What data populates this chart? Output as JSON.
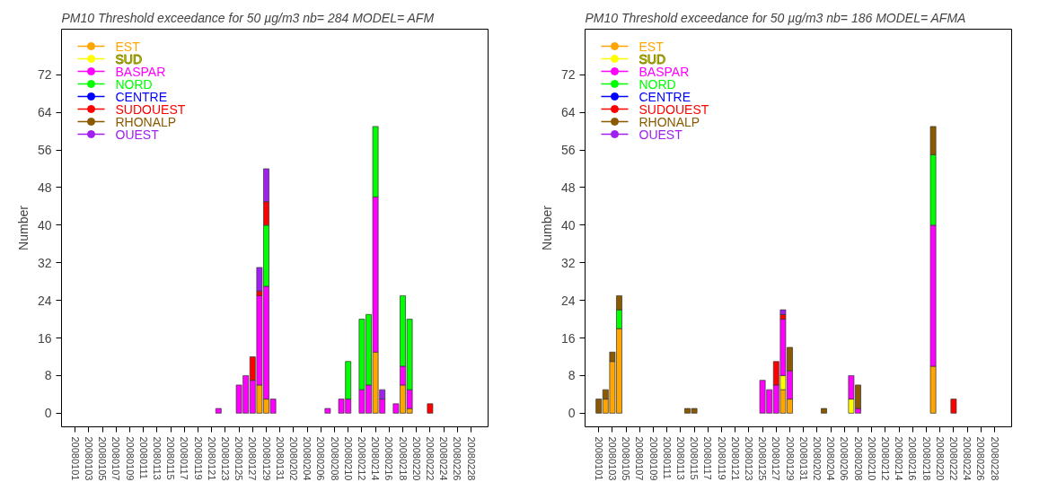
{
  "chart_data": [
    {
      "type": "bar",
      "stacked": true,
      "title": "PM10  Threshold exceedance for  50 µg/m3   nb= 284 MODEL= AFM",
      "ylabel": "Number",
      "categories": [
        "20080101",
        null,
        "20080103",
        null,
        "20080105",
        null,
        "20080107",
        null,
        "20080109",
        null,
        "20080111",
        null,
        "20080113",
        null,
        "20080115",
        null,
        "20080117",
        null,
        "20080119",
        null,
        "20080121",
        null,
        "20080123",
        null,
        "20080125",
        null,
        "20080127",
        null,
        "20080129",
        null,
        "20080131",
        null,
        "20080202",
        null,
        "20080204",
        null,
        "20080206",
        null,
        "20080208",
        null,
        "20080210",
        null,
        "20080212",
        null,
        "20080214",
        null,
        "20080216",
        null,
        "20080218",
        null,
        "20080220",
        null,
        "20080222",
        null,
        "20080224",
        null,
        "20080226",
        null,
        "20080228",
        null
      ],
      "series": [
        {
          "name": "EST",
          "color": "#ffa500",
          "values": [
            0,
            0,
            0,
            0,
            0,
            0,
            0,
            0,
            0,
            0,
            0,
            0,
            0,
            0,
            0,
            0,
            0,
            0,
            0,
            0,
            0,
            0,
            0,
            0,
            0,
            0,
            0,
            6,
            3,
            0,
            0,
            0,
            0,
            0,
            0,
            0,
            0,
            0,
            0,
            0,
            0,
            0,
            0,
            0,
            13,
            0,
            0,
            0,
            6,
            1,
            0,
            0,
            0,
            0,
            0,
            0,
            0,
            0,
            0,
            0
          ]
        },
        {
          "name": "SUD",
          "color": "#ffff00",
          "values": [
            0,
            0,
            0,
            0,
            0,
            0,
            0,
            0,
            0,
            0,
            0,
            0,
            0,
            0,
            0,
            0,
            0,
            0,
            0,
            0,
            0,
            0,
            0,
            0,
            0,
            0,
            0,
            0,
            0,
            0,
            0,
            0,
            0,
            0,
            0,
            0,
            0,
            0,
            0,
            0,
            0,
            0,
            0,
            0,
            0,
            0,
            0,
            0,
            0,
            0,
            0,
            0,
            0,
            0,
            0,
            0,
            0,
            0,
            0,
            0
          ]
        },
        {
          "name": "BASPAR",
          "color": "#ff00ff",
          "values": [
            0,
            0,
            0,
            0,
            0,
            0,
            0,
            0,
            0,
            0,
            0,
            0,
            0,
            0,
            0,
            0,
            0,
            0,
            0,
            0,
            0,
            1,
            0,
            0,
            6,
            8,
            7,
            19,
            24,
            3,
            0,
            0,
            0,
            0,
            0,
            0,
            0,
            1,
            0,
            3,
            3,
            0,
            5,
            6,
            33,
            3,
            0,
            2,
            4,
            4,
            0,
            0,
            0,
            0,
            0,
            0,
            0,
            0,
            0,
            0
          ]
        },
        {
          "name": "NORD",
          "color": "#00ff00",
          "values": [
            0,
            0,
            0,
            0,
            0,
            0,
            0,
            0,
            0,
            0,
            0,
            0,
            0,
            0,
            0,
            0,
            0,
            0,
            0,
            0,
            0,
            0,
            0,
            0,
            0,
            0,
            0,
            0,
            13,
            0,
            0,
            0,
            0,
            0,
            0,
            0,
            0,
            0,
            0,
            0,
            8,
            0,
            15,
            15,
            15,
            0,
            0,
            0,
            15,
            15,
            0,
            0,
            0,
            0,
            0,
            0,
            0,
            0,
            0,
            0
          ]
        },
        {
          "name": "CENTRE",
          "color": "#0000ff",
          "values": [
            0,
            0,
            0,
            0,
            0,
            0,
            0,
            0,
            0,
            0,
            0,
            0,
            0,
            0,
            0,
            0,
            0,
            0,
            0,
            0,
            0,
            0,
            0,
            0,
            0,
            0,
            0,
            0,
            0,
            0,
            0,
            0,
            0,
            0,
            0,
            0,
            0,
            0,
            0,
            0,
            0,
            0,
            0,
            0,
            0,
            0,
            0,
            0,
            0,
            0,
            0,
            0,
            0,
            0,
            0,
            0,
            0,
            0,
            0,
            0
          ]
        },
        {
          "name": "SUDOUEST",
          "color": "#ff0000",
          "values": [
            0,
            0,
            0,
            0,
            0,
            0,
            0,
            0,
            0,
            0,
            0,
            0,
            0,
            0,
            0,
            0,
            0,
            0,
            0,
            0,
            0,
            0,
            0,
            0,
            0,
            0,
            5,
            1,
            5,
            0,
            0,
            0,
            0,
            0,
            0,
            0,
            0,
            0,
            0,
            0,
            0,
            0,
            0,
            0,
            0,
            0,
            0,
            0,
            0,
            0,
            0,
            0,
            2,
            0,
            0,
            0,
            0,
            0,
            0,
            0
          ]
        },
        {
          "name": "RHONALP",
          "color": "#8b5a00",
          "values": [
            0,
            0,
            0,
            0,
            0,
            0,
            0,
            0,
            0,
            0,
            0,
            0,
            0,
            0,
            0,
            0,
            0,
            0,
            0,
            0,
            0,
            0,
            0,
            0,
            0,
            0,
            0,
            0,
            0,
            0,
            0,
            0,
            0,
            0,
            0,
            0,
            0,
            0,
            0,
            0,
            0,
            0,
            0,
            0,
            0,
            0,
            0,
            0,
            0,
            0,
            0,
            0,
            0,
            0,
            0,
            0,
            0,
            0,
            0,
            0
          ]
        },
        {
          "name": "OUEST",
          "color": "#a020f0",
          "values": [
            0,
            0,
            0,
            0,
            0,
            0,
            0,
            0,
            0,
            0,
            0,
            0,
            0,
            0,
            0,
            0,
            0,
            0,
            0,
            0,
            0,
            0,
            0,
            0,
            0,
            0,
            0,
            5,
            7,
            0,
            0,
            0,
            0,
            0,
            0,
            0,
            0,
            0,
            0,
            0,
            0,
            0,
            0,
            0,
            0,
            2,
            0,
            0,
            0,
            0,
            0,
            0,
            0,
            0,
            0,
            0,
            0,
            0,
            0,
            0
          ]
        }
      ],
      "ylim": [
        -2.9,
        81.7
      ],
      "yticks": [
        0,
        8,
        16,
        24,
        32,
        40,
        48,
        56,
        64,
        72
      ],
      "grid": false,
      "legend": "top left"
    },
    {
      "type": "bar",
      "stacked": true,
      "title": "PM10  Threshold exceedance for  50 µg/m3   nb= 186 MODEL= AFMA",
      "ylabel": "Number",
      "categories": [
        "20080101",
        null,
        "20080103",
        null,
        "20080105",
        null,
        "20080107",
        null,
        "20080109",
        null,
        "20080111",
        null,
        "20080113",
        null,
        "20080115",
        null,
        "20080117",
        null,
        "20080119",
        null,
        "20080121",
        null,
        "20080123",
        null,
        "20080125",
        null,
        "20080127",
        null,
        "20080129",
        null,
        "20080131",
        null,
        "20080202",
        null,
        "20080204",
        null,
        "20080206",
        null,
        "20080208",
        null,
        "20080210",
        null,
        "20080212",
        null,
        "20080214",
        null,
        "20080216",
        null,
        "20080218",
        null,
        "20080220",
        null,
        "20080222",
        null,
        "20080224",
        null,
        "20080226",
        null,
        "20080228",
        null
      ],
      "series": [
        {
          "name": "EST",
          "color": "#ffa500",
          "values": [
            0,
            3,
            11,
            18,
            0,
            0,
            0,
            0,
            0,
            0,
            0,
            0,
            0,
            0,
            0,
            0,
            0,
            0,
            0,
            0,
            0,
            0,
            0,
            0,
            0,
            0,
            0,
            5,
            3,
            0,
            0,
            0,
            0,
            0,
            0,
            0,
            0,
            0,
            0,
            0,
            0,
            0,
            0,
            0,
            0,
            0,
            0,
            0,
            0,
            10,
            0,
            0,
            0,
            0,
            0,
            0,
            0,
            0,
            0,
            0
          ]
        },
        {
          "name": "SUD",
          "color": "#ffff00",
          "values": [
            0,
            0,
            0,
            0,
            0,
            0,
            0,
            0,
            0,
            0,
            0,
            0,
            0,
            0,
            0,
            0,
            0,
            0,
            0,
            0,
            0,
            0,
            0,
            0,
            0,
            0,
            0,
            3,
            0,
            0,
            0,
            0,
            0,
            0,
            0,
            0,
            0,
            3,
            0,
            0,
            0,
            0,
            0,
            0,
            0,
            0,
            0,
            0,
            0,
            0,
            0,
            0,
            0,
            0,
            0,
            0,
            0,
            0,
            0,
            0
          ]
        },
        {
          "name": "BASPAR",
          "color": "#ff00ff",
          "values": [
            0,
            0,
            0,
            0,
            0,
            0,
            0,
            0,
            0,
            0,
            0,
            0,
            0,
            0,
            0,
            0,
            0,
            0,
            0,
            0,
            0,
            0,
            0,
            0,
            7,
            5,
            6,
            12,
            6,
            0,
            0,
            0,
            0,
            0,
            0,
            0,
            0,
            5,
            1,
            0,
            0,
            0,
            0,
            0,
            0,
            0,
            0,
            0,
            0,
            30,
            0,
            0,
            0,
            0,
            0,
            0,
            0,
            0,
            0,
            0
          ]
        },
        {
          "name": "NORD",
          "color": "#00ff00",
          "values": [
            0,
            0,
            0,
            4,
            0,
            0,
            0,
            0,
            0,
            0,
            0,
            0,
            0,
            0,
            0,
            0,
            0,
            0,
            0,
            0,
            0,
            0,
            0,
            0,
            0,
            0,
            0,
            0,
            0,
            0,
            0,
            0,
            0,
            0,
            0,
            0,
            0,
            0,
            0,
            0,
            0,
            0,
            0,
            0,
            0,
            0,
            0,
            0,
            0,
            15,
            0,
            0,
            0,
            0,
            0,
            0,
            0,
            0,
            0,
            0
          ]
        },
        {
          "name": "CENTRE",
          "color": "#0000ff",
          "values": [
            0,
            0,
            0,
            0,
            0,
            0,
            0,
            0,
            0,
            0,
            0,
            0,
            0,
            0,
            0,
            0,
            0,
            0,
            0,
            0,
            0,
            0,
            0,
            0,
            0,
            0,
            0,
            0,
            0,
            0,
            0,
            0,
            0,
            0,
            0,
            0,
            0,
            0,
            0,
            0,
            0,
            0,
            0,
            0,
            0,
            0,
            0,
            0,
            0,
            0,
            0,
            0,
            0,
            0,
            0,
            0,
            0,
            0,
            0,
            0
          ]
        },
        {
          "name": "SUDOUEST",
          "color": "#ff0000",
          "values": [
            0,
            0,
            0,
            0,
            0,
            0,
            0,
            0,
            0,
            0,
            0,
            0,
            0,
            0,
            0,
            0,
            0,
            0,
            0,
            0,
            0,
            0,
            0,
            0,
            0,
            0,
            5,
            1,
            0,
            0,
            0,
            0,
            0,
            0,
            0,
            0,
            0,
            0,
            0,
            0,
            0,
            0,
            0,
            0,
            0,
            0,
            0,
            0,
            0,
            0,
            0,
            0,
            3,
            0,
            0,
            0,
            0,
            0,
            0,
            0
          ]
        },
        {
          "name": "RHONALP",
          "color": "#8b5a00",
          "values": [
            3,
            2,
            2,
            3,
            0,
            0,
            0,
            0,
            0,
            0,
            0,
            0,
            0,
            1,
            1,
            0,
            0,
            0,
            0,
            0,
            0,
            0,
            0,
            0,
            0,
            0,
            0,
            0,
            5,
            0,
            0,
            0,
            0,
            1,
            0,
            0,
            0,
            0,
            5,
            0,
            0,
            0,
            0,
            0,
            0,
            0,
            0,
            0,
            0,
            6,
            0,
            0,
            0,
            0,
            0,
            0,
            0,
            0,
            0,
            0
          ]
        },
        {
          "name": "OUEST",
          "color": "#a020f0",
          "values": [
            0,
            0,
            0,
            0,
            0,
            0,
            0,
            0,
            0,
            0,
            0,
            0,
            0,
            0,
            0,
            0,
            0,
            0,
            0,
            0,
            0,
            0,
            0,
            0,
            0,
            0,
            0,
            1,
            0,
            0,
            0,
            0,
            0,
            0,
            0,
            0,
            0,
            0,
            0,
            0,
            0,
            0,
            0,
            0,
            0,
            0,
            0,
            0,
            0,
            0,
            0,
            0,
            0,
            0,
            0,
            0,
            0,
            0,
            0,
            0
          ]
        }
      ],
      "ylim": [
        -2.9,
        81.7
      ],
      "yticks": [
        0,
        8,
        16,
        24,
        32,
        40,
        48,
        56,
        64,
        72
      ],
      "grid": false,
      "legend": "top left"
    }
  ]
}
